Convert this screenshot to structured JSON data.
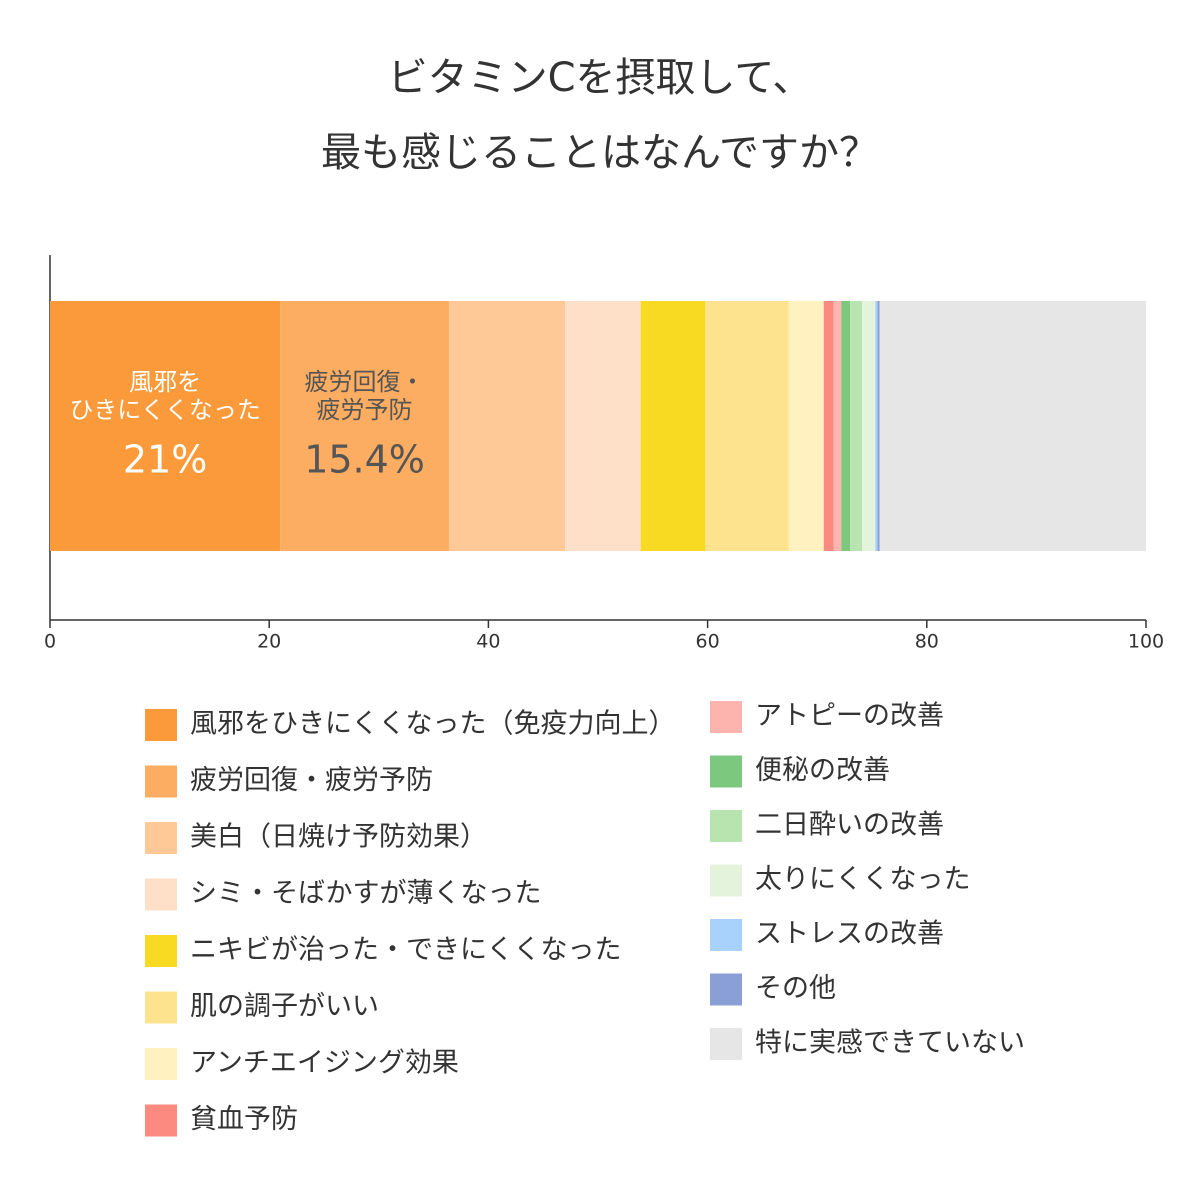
{
  "chart_data": {
    "type": "stacked_bar",
    "title": [
      "ビタミンCを摂取して、",
      "最も感じることはなんですか？"
    ],
    "xlim": [
      0,
      100
    ],
    "xticks": [
      0,
      20,
      40,
      60,
      80,
      100
    ],
    "series": [
      {
        "name": "風邪をひきにくくなった（免疫力向上）",
        "color": "#fb9a3a",
        "values": [
          21
        ],
        "label": [
          "風邪を",
          "ひきにくくなった"
        ],
        "value_labels": [
          "21%"
        ],
        "label_color": "#ffffff"
      },
      {
        "name": "疲労回復・疲労予防",
        "color": "#fdad62",
        "values": [
          15.4
        ],
        "label": [
          "疲労回復・",
          "疲労予防"
        ],
        "value_labels": [
          "15.4%"
        ],
        "label_color": "#555555"
      },
      {
        "name": "美白（日焼け予防効果）",
        "color": "#fec997",
        "values": [
          10.6
        ]
      },
      {
        "name": "シミ・そばかすが薄くなった",
        "color": "#fee0c8",
        "values": [
          6.9
        ]
      },
      {
        "name": "ニキビが治った・できにくくなった",
        "color": "#f9da23",
        "values": [
          5.9
        ]
      },
      {
        "name": "肌の調子がいい",
        "color": "#fde38e",
        "values": [
          7.6
        ]
      },
      {
        "name": "アンチエイジング効果",
        "color": "#fff1c0",
        "values": [
          3.2
        ]
      },
      {
        "name": "貧血予防",
        "color": "#fd8a80",
        "values": [
          0.9
        ]
      },
      {
        "name": "アトピーの改善",
        "color": "#fdb3ae",
        "values": [
          0.7
        ]
      },
      {
        "name": "便秘の改善",
        "color": "#7bc87e",
        "values": [
          0.8
        ]
      },
      {
        "name": "二日酔いの改善",
        "color": "#b8e4af",
        "values": [
          1.1
        ]
      },
      {
        "name": "太りにくくなった",
        "color": "#e4f3dc",
        "values": [
          1.2
        ]
      },
      {
        "name": "ストレスの改善",
        "color": "#a8d2fb",
        "values": [
          0.2
        ]
      },
      {
        "name": "その他",
        "color": "#8a9fd6",
        "values": [
          0.2
        ]
      },
      {
        "name": "特に実感できていない",
        "color": "#e6e6e6",
        "values": [
          24.3
        ]
      }
    ]
  }
}
